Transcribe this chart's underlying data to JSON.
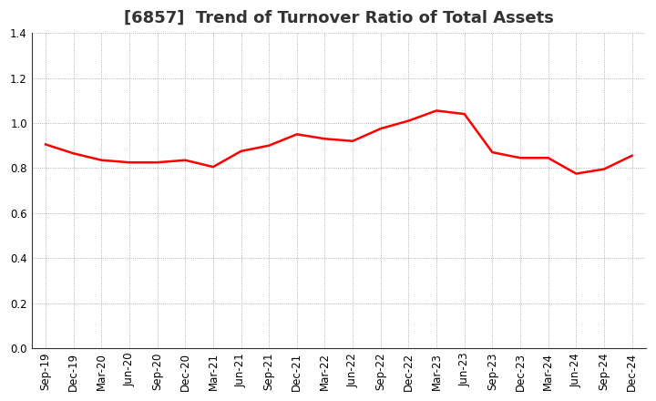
{
  "title": "[6857]  Trend of Turnover Ratio of Total Assets",
  "x_labels": [
    "Sep-19",
    "Dec-19",
    "Mar-20",
    "Jun-20",
    "Sep-20",
    "Dec-20",
    "Mar-21",
    "Jun-21",
    "Sep-21",
    "Dec-21",
    "Mar-22",
    "Jun-22",
    "Sep-22",
    "Dec-22",
    "Mar-23",
    "Jun-23",
    "Sep-23",
    "Dec-23",
    "Mar-24",
    "Jun-24",
    "Sep-24",
    "Dec-24"
  ],
  "y_values": [
    0.905,
    0.865,
    0.835,
    0.825,
    0.825,
    0.835,
    0.805,
    0.875,
    0.9,
    0.95,
    0.93,
    0.92,
    0.975,
    1.01,
    1.055,
    1.04,
    0.87,
    0.845,
    0.845,
    0.775,
    0.795,
    0.855
  ],
  "line_color": "#ff0000",
  "fill_color": "#ffcccc",
  "ylim": [
    0.0,
    1.4
  ],
  "yticks": [
    0.0,
    0.2,
    0.4,
    0.6,
    0.8,
    1.0,
    1.2,
    1.4
  ],
  "background_color": "#ffffff",
  "grid_color": "#999999",
  "title_fontsize": 13,
  "tick_fontsize": 8.5,
  "title_color": "#333333"
}
